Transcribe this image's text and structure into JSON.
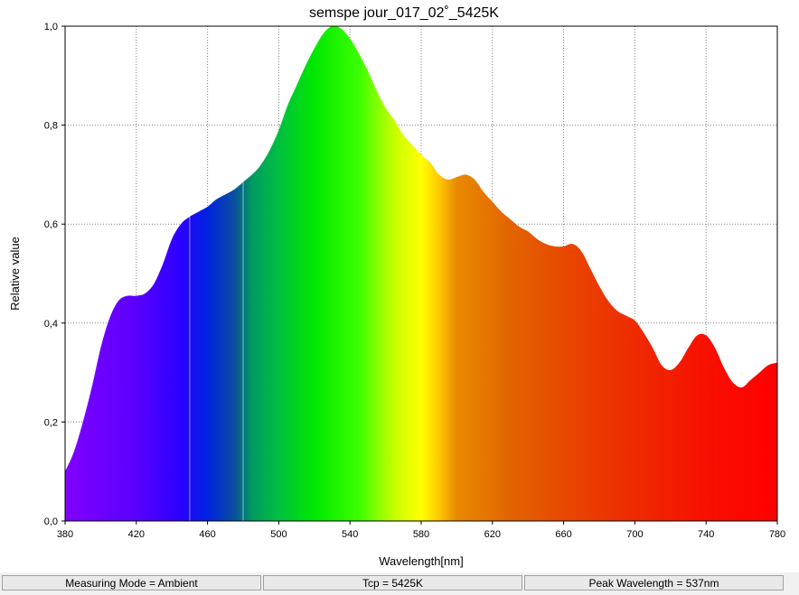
{
  "chart_data": {
    "type": "area",
    "title": "semspe jour_017_02˚_5425K",
    "xlabel": "Wavelength[nm]",
    "ylabel": "Relative value",
    "xlim": [
      380,
      780
    ],
    "ylim": [
      0,
      1
    ],
    "x_ticks": [
      "380",
      "420",
      "460",
      "500",
      "540",
      "580",
      "620",
      "660",
      "700",
      "740",
      "780"
    ],
    "y_ticks": [
      "0,0",
      "0,2",
      "0,4",
      "0,6",
      "0,8",
      "1,0"
    ],
    "grid": true,
    "fill": "spectral-color-gradient",
    "x": [
      380,
      385,
      390,
      395,
      400,
      405,
      410,
      415,
      420,
      425,
      430,
      435,
      440,
      445,
      450,
      455,
      460,
      465,
      470,
      475,
      480,
      485,
      490,
      495,
      500,
      505,
      510,
      515,
      520,
      525,
      530,
      535,
      540,
      545,
      550,
      555,
      560,
      565,
      570,
      575,
      580,
      585,
      590,
      595,
      600,
      605,
      610,
      615,
      620,
      625,
      630,
      635,
      640,
      645,
      650,
      655,
      660,
      665,
      670,
      675,
      680,
      685,
      690,
      695,
      700,
      705,
      710,
      715,
      720,
      725,
      730,
      735,
      740,
      745,
      750,
      755,
      760,
      765,
      770,
      775,
      780
    ],
    "values": [
      0.1,
      0.14,
      0.2,
      0.27,
      0.35,
      0.41,
      0.445,
      0.455,
      0.455,
      0.46,
      0.48,
      0.52,
      0.57,
      0.6,
      0.615,
      0.625,
      0.635,
      0.65,
      0.66,
      0.67,
      0.685,
      0.7,
      0.72,
      0.75,
      0.79,
      0.84,
      0.88,
      0.92,
      0.955,
      0.985,
      1.0,
      0.995,
      0.975,
      0.945,
      0.91,
      0.87,
      0.835,
      0.81,
      0.78,
      0.76,
      0.74,
      0.725,
      0.7,
      0.69,
      0.695,
      0.7,
      0.69,
      0.665,
      0.645,
      0.625,
      0.61,
      0.595,
      0.585,
      0.57,
      0.56,
      0.555,
      0.555,
      0.56,
      0.545,
      0.51,
      0.475,
      0.445,
      0.425,
      0.415,
      0.405,
      0.38,
      0.35,
      0.315,
      0.305,
      0.32,
      0.35,
      0.375,
      0.375,
      0.35,
      0.31,
      0.28,
      0.27,
      0.285,
      0.3,
      0.315,
      0.32
    ],
    "markers_nm": [
      450,
      480
    ]
  },
  "status_bar": {
    "measuring_mode": "Measuring Mode = Ambient",
    "tcp": "Tcp = 5425K",
    "peak_wavelength": "Peak Wavelength = 537nm"
  },
  "colors": {
    "plot_background": "#ffffff",
    "grid": "#808080",
    "axis": "#000000",
    "status_bar": "#f0f0f0"
  }
}
